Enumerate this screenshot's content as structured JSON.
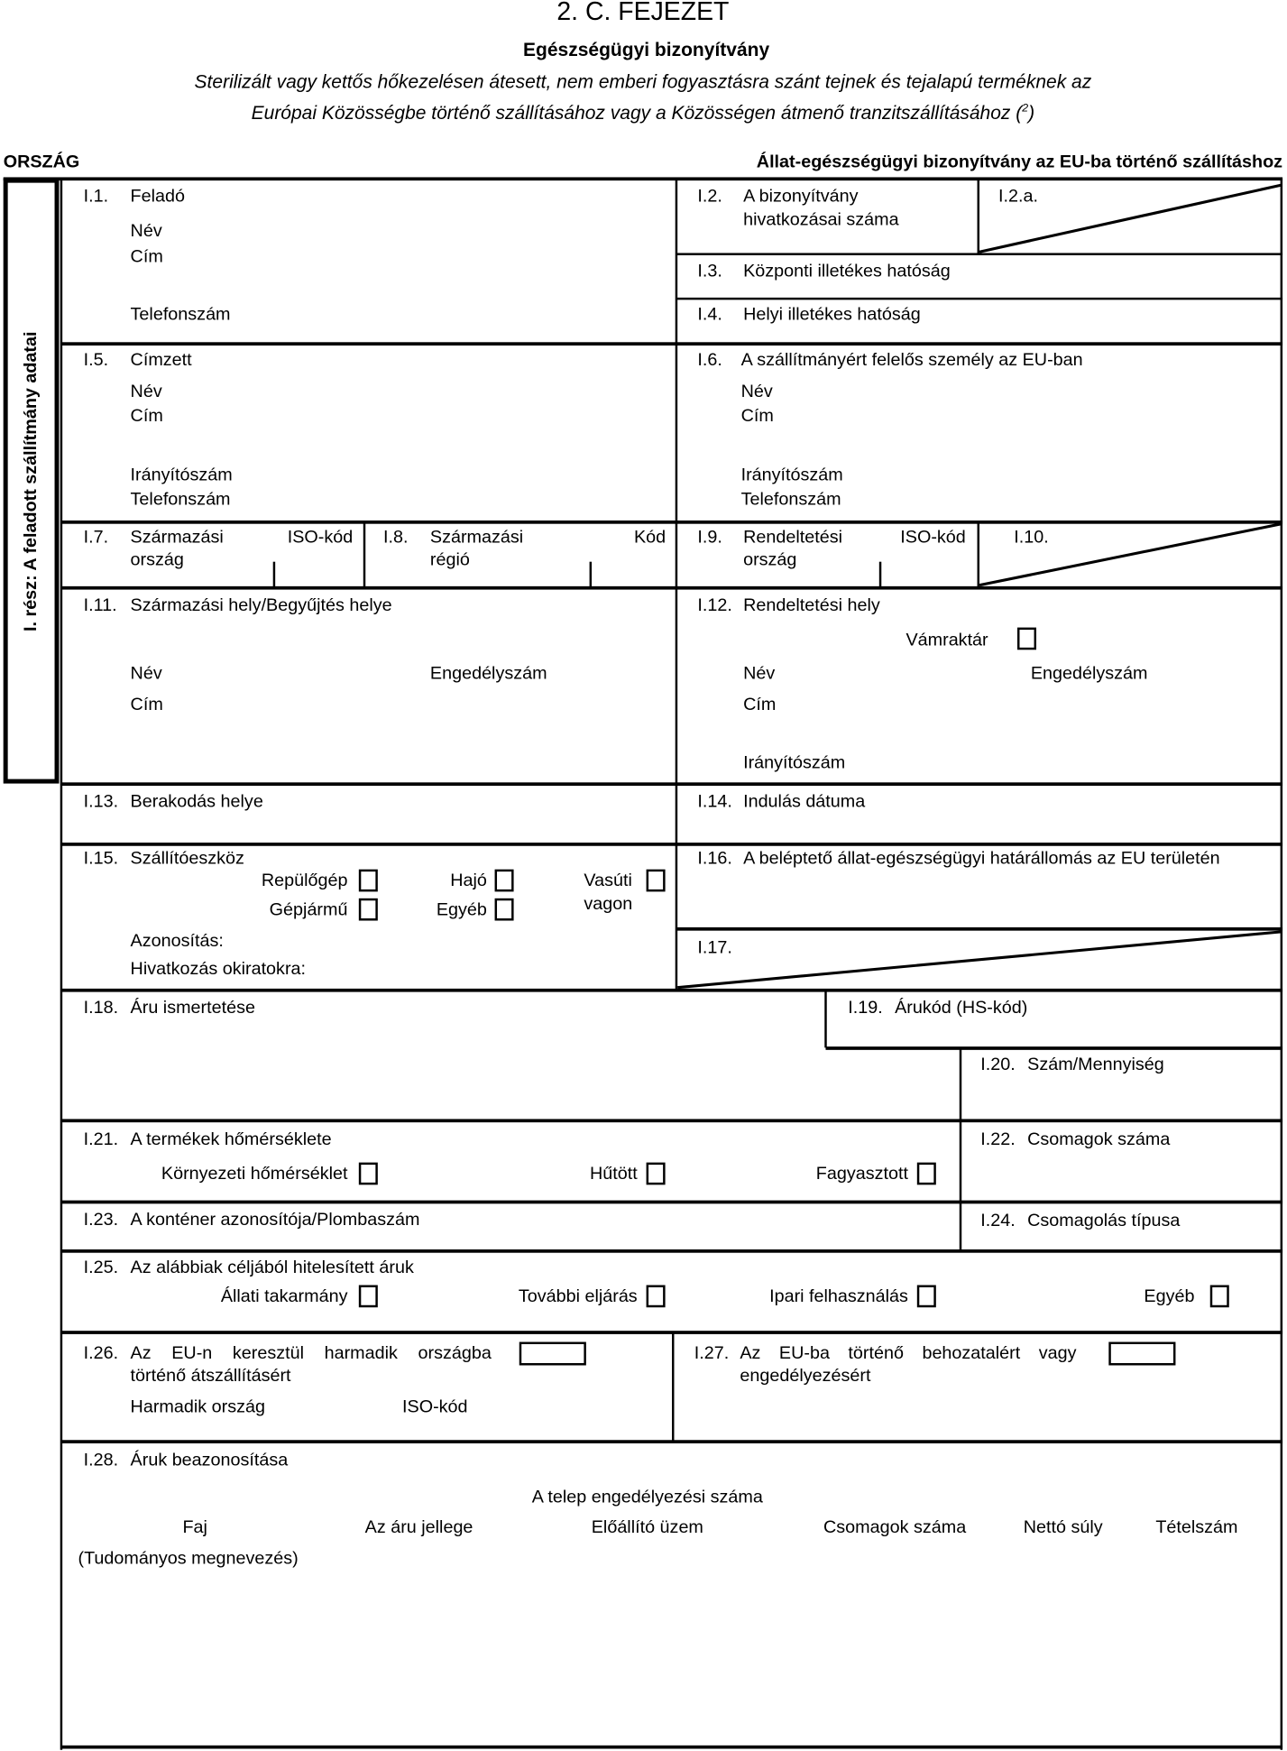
{
  "header": {
    "chapter": "2. C. FEJEZET",
    "title": "Egészségügyi bizonyítvány",
    "subtitle_line1": "Sterilizált vagy kettős hőkezelésen átesett, nem emberi fogyasztásra szánt tejnek és tejalapú terméknek az",
    "subtitle_line2": "Európai Közösségbe történő szállításához vagy a Közösségen átmenő tranzitszállításához (",
    "footnote": "2",
    "subtitle_close": ")",
    "country": "ORSZÁG",
    "cert_type": "Állat-egészségügyi bizonyítvány az EU-ba történő szállításhoz"
  },
  "sidebar": {
    "label": "I. rész: A feladott szállítmány adatai"
  },
  "fields": {
    "f1": {
      "num": "I.1.",
      "label": "Feladó",
      "name": "Név",
      "address": "Cím",
      "phone": "Telefonszám"
    },
    "f2": {
      "num": "I.2.",
      "label1": "A bizonyítvány",
      "label2": "hivatkozásai száma"
    },
    "f2a": {
      "num": "I.2.a."
    },
    "f3": {
      "num": "I.3.",
      "label": "Központi illetékes hatóság"
    },
    "f4": {
      "num": "I.4.",
      "label": "Helyi illetékes hatóság"
    },
    "f5": {
      "num": "I.5.",
      "label": "Címzett",
      "name": "Név",
      "address": "Cím",
      "postcode": "Irányítószám",
      "phone": "Telefonszám"
    },
    "f6": {
      "num": "I.6.",
      "label": "A szállítmányért felelős személy az EU-ban",
      "name": "Név",
      "address": "Cím",
      "postcode": "Irányítószám",
      "phone": "Telefonszám"
    },
    "f7": {
      "num": "I.7.",
      "label1": "Származási",
      "label2": "ország",
      "code": "ISO-kód"
    },
    "f8": {
      "num": "I.8.",
      "label1": "Származási",
      "label2": "régió",
      "code": "Kód"
    },
    "f9": {
      "num": "I.9.",
      "label1": "Rendeltetési",
      "label2": "ország",
      "code": "ISO-kód"
    },
    "f10": {
      "num": "I.10."
    },
    "f11": {
      "num": "I.11.",
      "label": "Származási hely/Begyűjtés helye",
      "name": "Név",
      "approval": "Engedélyszám",
      "address": "Cím"
    },
    "f12": {
      "num": "I.12.",
      "label": "Rendeltetési hely",
      "bonded": "Vámraktár",
      "name": "Név",
      "approval": "Engedélyszám",
      "address": "Cím",
      "postcode": "Irányítószám"
    },
    "f13": {
      "num": "I.13.",
      "label": "Berakodás helye"
    },
    "f14": {
      "num": "I.14.",
      "label": "Indulás dátuma"
    },
    "f15": {
      "num": "I.15.",
      "label": "Szállítóeszköz",
      "plane": "Repülőgép",
      "ship": "Hajó",
      "rail1": "Vasúti",
      "rail2": "vagon",
      "vehicle": "Gépjármű",
      "other": "Egyéb",
      "ident": "Azonosítás:",
      "docs": "Hivatkozás okiratokra:"
    },
    "f16": {
      "num": "I.16.",
      "label": "A beléptető állat-egészségügyi határállomás az EU területén"
    },
    "f17": {
      "num": "I.17."
    },
    "f18": {
      "num": "I.18.",
      "label": "Áru ismertetése"
    },
    "f19": {
      "num": "I.19.",
      "label": "Árukód (HS-kód)"
    },
    "f20": {
      "num": "I.20.",
      "label": "Szám/Mennyiség"
    },
    "f21": {
      "num": "I.21.",
      "label": "A termékek hőmérséklete",
      "ambient": "Környezeti hőmérséklet",
      "chilled": "Hűtött",
      "frozen": "Fagyasztott"
    },
    "f22": {
      "num": "I.22.",
      "label": "Csomagok száma"
    },
    "f23": {
      "num": "I.23.",
      "label": "A konténer azonosítója/Plombaszám"
    },
    "f24": {
      "num": "I.24.",
      "label": "Csomagolás típusa"
    },
    "f25": {
      "num": "I.25.",
      "label": "Az alábbiak céljából hitelesített áruk",
      "feed": "Állati takarmány",
      "processing": "További eljárás",
      "industrial": "Ipari felhasználás",
      "other": "Egyéb"
    },
    "f26": {
      "num": "I.26.",
      "label1": "Az EU-n keresztül harmadik országba",
      "label2": "történő átszállításért",
      "country": "Harmadik ország",
      "code": "ISO-kód"
    },
    "f27": {
      "num": "I.27.",
      "label1": "Az EU-ba történő behozatalért vagy",
      "label2": "engedélyezésért"
    },
    "f28": {
      "num": "I.28.",
      "label": "Áruk beazonosítása",
      "approval": "A telep engedélyezési száma",
      "cols": [
        "Faj",
        "Az áru jellege",
        "Előállító üzem",
        "Csomagok száma",
        "Nettó súly",
        "Tételszám"
      ],
      "scientific": "(Tudományos megnevezés)"
    }
  }
}
